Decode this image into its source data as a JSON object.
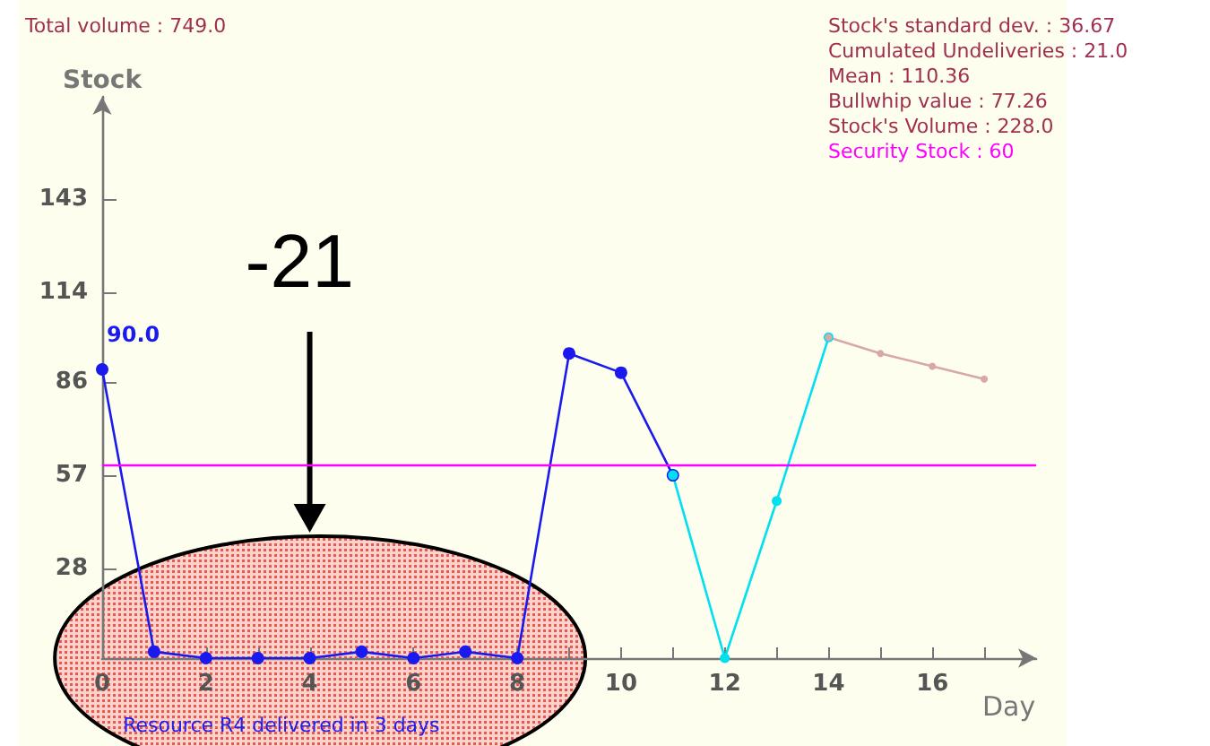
{
  "chart_data": {
    "type": "line",
    "xlabel": "Day",
    "ylabel": "Stock",
    "series": [
      {
        "color": "#1a1aee",
        "x": [
          0,
          1,
          2,
          3,
          4,
          5,
          6,
          7,
          8,
          9,
          10,
          11
        ],
        "values": [
          90,
          2,
          0,
          0,
          0,
          2,
          0,
          2,
          0,
          95,
          89,
          57
        ],
        "value_labels": [
          "90.0",
          null,
          null,
          null,
          null,
          null,
          null,
          null,
          null,
          null,
          null,
          null
        ]
      },
      {
        "color": "#00e0f0",
        "x": [
          11,
          12,
          13,
          14
        ],
        "values": [
          57,
          0,
          49,
          100
        ]
      },
      {
        "color": "#d8a8a8",
        "x": [
          14,
          15,
          16,
          17
        ],
        "values": [
          100,
          95,
          91,
          87
        ]
      }
    ],
    "xlim": [
      0,
      18
    ],
    "ylim": [
      0,
      175
    ],
    "xticks": [
      0,
      {
        "value": 1,
        "label": null
      },
      2,
      {
        "value": 3,
        "label": null
      },
      4,
      {
        "value": 5,
        "label": null
      },
      6,
      {
        "value": 7,
        "label": null
      },
      8,
      {
        "value": 9,
        "label": null
      },
      10,
      {
        "value": 11,
        "label": null
      },
      12,
      {
        "value": 13,
        "label": null
      },
      14,
      {
        "value": 15,
        "label": null
      },
      16,
      {
        "value": 17,
        "label": null
      }
    ],
    "yticks": [
      28,
      57,
      86,
      114,
      143
    ],
    "ref_lines": [
      {
        "axis": "y",
        "value": 60,
        "label": "Security Stock : 60",
        "color": "#ff00ff"
      }
    ],
    "annotations": [
      "Total volume : 749.0",
      "Stock's standard dev. : 36.67",
      "Cumulated Undeliveries : 21.0",
      "Mean : 110.36",
      "Bullwhip value : 77.26",
      "Stock's Volume : 228.0",
      "-21",
      "Resource R4 delivered in 3 days"
    ],
    "marker": "circle",
    "grid": false
  }
}
